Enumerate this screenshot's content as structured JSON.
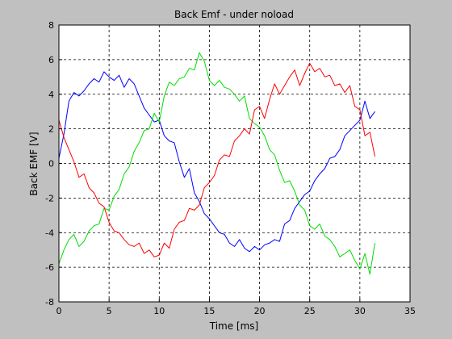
{
  "figure": {
    "background": "#c0c0c0"
  },
  "chart_data": {
    "type": "line",
    "title": "Back Emf - under noload",
    "xlabel": "Time [ms]",
    "ylabel": "Back EMF [V]",
    "xlim": [
      0,
      35
    ],
    "ylim": [
      -8,
      8
    ],
    "xticks": [
      0,
      5,
      10,
      15,
      20,
      25,
      30,
      35
    ],
    "yticks": [
      -8,
      -6,
      -4,
      -2,
      0,
      2,
      4,
      6,
      8
    ],
    "grid": true,
    "grid_style": "dashed",
    "legend": "none",
    "x": [
      0,
      0.5,
      1,
      1.5,
      2,
      2.5,
      3,
      3.5,
      4,
      4.5,
      5,
      5.5,
      6,
      6.5,
      7,
      7.5,
      8,
      8.5,
      9,
      9.5,
      10,
      10.5,
      11,
      11.5,
      12,
      12.5,
      13,
      13.5,
      14,
      14.5,
      15,
      15.5,
      16,
      16.5,
      17,
      17.5,
      18,
      18.5,
      19,
      19.5,
      20,
      20.5,
      21,
      21.5,
      22,
      22.5,
      23,
      23.5,
      24,
      24.5,
      25,
      25.5,
      26,
      26.5,
      27,
      27.5,
      28,
      28.5,
      29,
      29.5,
      30,
      30.5,
      31,
      31.5
    ],
    "series": [
      {
        "color": "#0000ff",
        "values": [
          0.3,
          1.7,
          3.6,
          4.1,
          3.9,
          4.2,
          4.6,
          4.9,
          4.7,
          5.3,
          5.0,
          4.8,
          5.1,
          4.4,
          4.9,
          4.6,
          3.9,
          3.2,
          2.8,
          2.4,
          2.5,
          1.6,
          1.3,
          1.2,
          0.1,
          -0.8,
          -0.3,
          -1.7,
          -2.2,
          -2.9,
          -3.2,
          -3.6,
          -4.0,
          -4.1,
          -4.6,
          -4.8,
          -4.4,
          -4.9,
          -5.1,
          -4.8,
          -5.0,
          -4.7,
          -4.6,
          -4.4,
          -4.5,
          -3.5,
          -3.3,
          -2.6,
          -2.2,
          -1.8,
          -1.6,
          -1.0,
          -0.6,
          -0.3,
          0.3,
          0.4,
          0.8,
          1.6,
          1.9,
          2.2,
          2.5,
          3.6,
          2.6,
          3.0
        ]
      },
      {
        "color": "#00dd00",
        "values": [
          -5.8,
          -5.0,
          -4.4,
          -4.1,
          -4.8,
          -4.5,
          -3.9,
          -3.6,
          -3.5,
          -2.6,
          -2.7,
          -1.9,
          -1.5,
          -0.6,
          -0.2,
          0.7,
          1.2,
          1.9,
          2.0,
          2.9,
          2.4,
          3.9,
          4.7,
          4.5,
          4.9,
          5.0,
          5.5,
          5.4,
          6.4,
          5.9,
          4.8,
          4.5,
          4.8,
          4.4,
          4.3,
          4.0,
          3.6,
          3.9,
          2.6,
          2.3,
          2.1,
          1.6,
          0.8,
          0.5,
          -0.4,
          -1.1,
          -1.0,
          -1.6,
          -2.4,
          -2.7,
          -3.6,
          -3.8,
          -3.5,
          -4.2,
          -4.4,
          -4.8,
          -5.4,
          -5.2,
          -5.0,
          -5.6,
          -6.1,
          -5.2,
          -6.4,
          -4.6
        ]
      },
      {
        "color": "#ff0000",
        "values": [
          2.5,
          1.5,
          0.8,
          0.1,
          -0.8,
          -0.6,
          -1.4,
          -1.7,
          -2.3,
          -2.5,
          -3.4,
          -3.9,
          -4.0,
          -4.4,
          -4.7,
          -4.8,
          -4.6,
          -5.2,
          -5.0,
          -5.4,
          -5.3,
          -4.6,
          -4.9,
          -3.8,
          -3.4,
          -3.3,
          -2.6,
          -2.7,
          -2.4,
          -1.4,
          -1.1,
          -0.7,
          0.2,
          0.5,
          0.4,
          1.3,
          1.6,
          2.0,
          1.7,
          3.1,
          3.3,
          2.6,
          3.7,
          4.6,
          4.0,
          4.5,
          5.0,
          5.4,
          4.5,
          5.2,
          5.8,
          5.3,
          5.5,
          5.0,
          5.1,
          4.5,
          4.6,
          4.1,
          4.5,
          3.3,
          3.1,
          1.6,
          1.8,
          0.4
        ]
      }
    ]
  }
}
